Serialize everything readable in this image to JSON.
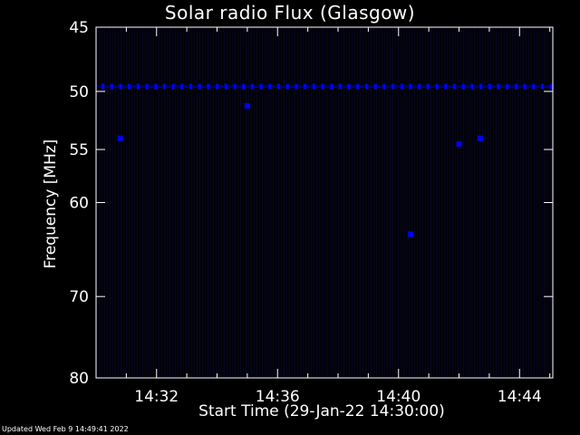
{
  "chart_data": {
    "type": "heatmap",
    "title": "Solar radio Flux (Glasgow)",
    "xlabel": "Start Time (29-Jan-22 14:30:00)",
    "ylabel": "Frequency [MHz]",
    "x_tick_labels": [
      "14:32",
      "14:36",
      "14:40",
      "14:44"
    ],
    "x_ticks_minutes": [
      2,
      6,
      10,
      14
    ],
    "xlim_minutes": [
      0,
      15.1
    ],
    "y_tick_values": [
      45,
      50,
      55,
      60,
      70,
      80
    ],
    "y_tick_labels": [
      "45",
      "50",
      "55",
      "60",
      "70",
      "80"
    ],
    "ylim": [
      45,
      80
    ],
    "y_scale": "log",
    "grid": false,
    "colormap": [
      "#000000",
      "#00007a",
      "#0000ff"
    ],
    "interference_band": {
      "frequency_mhz": 49.6,
      "intensity": "moderate",
      "pattern": "periodic"
    },
    "bright_spots": [
      {
        "time_min": 0.8,
        "frequency_mhz": 54.0
      },
      {
        "time_min": 5.0,
        "frequency_mhz": 51.2
      },
      {
        "time_min": 12.0,
        "frequency_mhz": 54.5
      },
      {
        "time_min": 12.7,
        "frequency_mhz": 54.0
      },
      {
        "time_min": 10.4,
        "frequency_mhz": 63.2
      }
    ]
  },
  "footer_text": "Updated Wed Feb  9 14:49:41 2022"
}
